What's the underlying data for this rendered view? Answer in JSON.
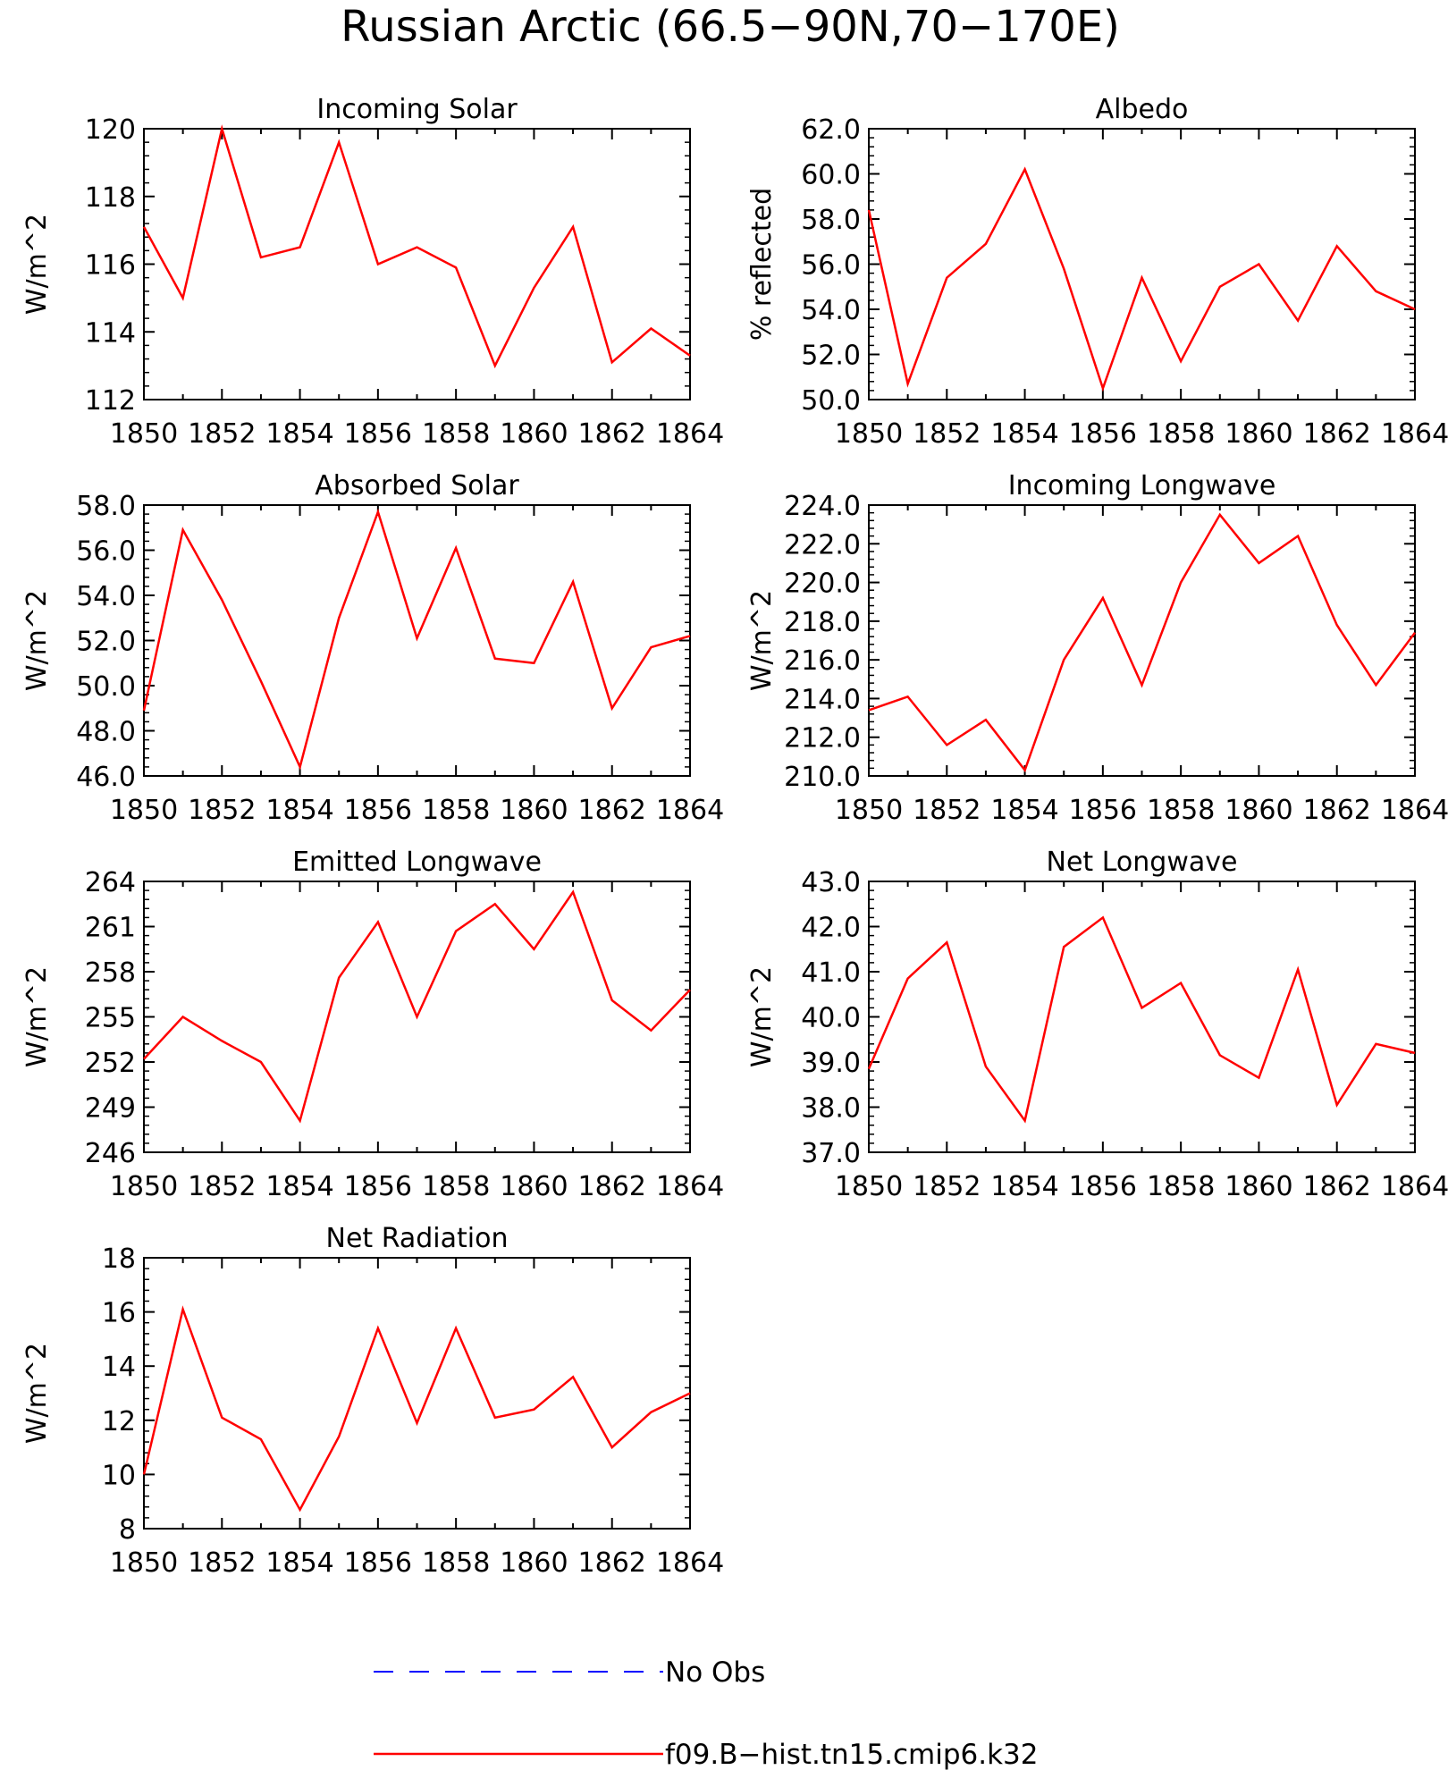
{
  "title": "Russian Arctic (66.5−90N,70−170E)",
  "legend": {
    "placement": "bottom-center",
    "entries": [
      {
        "label": "No Obs",
        "color": "#0000ff",
        "dash": "dashed"
      },
      {
        "label": "f09.B−hist.tn15.cmip6.k32",
        "color": "#ff0000",
        "dash": "solid"
      }
    ]
  },
  "chart_data": [
    {
      "type": "line",
      "title": "Incoming Solar",
      "xlabel": "",
      "ylabel": "W/m^2",
      "xlim": [
        1850,
        1864
      ],
      "ylim": [
        112,
        120
      ],
      "xticks": [
        "1850",
        "1852",
        "1854",
        "1856",
        "1858",
        "1860",
        "1862",
        "1864"
      ],
      "yticks": [
        "112",
        "114",
        "116",
        "118",
        "120"
      ],
      "series": [
        {
          "name": "f09.B−hist.tn15.cmip6.k32",
          "color": "#ff0000",
          "x": [
            1850,
            1851,
            1852,
            1853,
            1854,
            1855,
            1856,
            1857,
            1858,
            1859,
            1860,
            1861,
            1862,
            1863,
            1864
          ],
          "y": [
            117.1,
            115.0,
            120.0,
            116.2,
            116.5,
            119.6,
            116.0,
            116.5,
            115.9,
            113.0,
            115.3,
            117.1,
            113.1,
            114.1,
            113.3
          ]
        }
      ]
    },
    {
      "type": "line",
      "title": "Albedo",
      "xlabel": "",
      "ylabel": "% reflected",
      "xlim": [
        1850,
        1864
      ],
      "ylim": [
        50.0,
        62.0
      ],
      "xticks": [
        "1850",
        "1852",
        "1854",
        "1856",
        "1858",
        "1860",
        "1862",
        "1864"
      ],
      "yticks": [
        "50.0",
        "52.0",
        "54.0",
        "56.0",
        "58.0",
        "60.0",
        "62.0"
      ],
      "series": [
        {
          "name": "f09.B−hist.tn15.cmip6.k32",
          "color": "#ff0000",
          "x": [
            1850,
            1851,
            1852,
            1853,
            1854,
            1855,
            1856,
            1857,
            1858,
            1859,
            1860,
            1861,
            1862,
            1863,
            1864
          ],
          "y": [
            58.4,
            50.7,
            55.4,
            56.9,
            60.2,
            55.8,
            50.5,
            55.4,
            51.7,
            55.0,
            56.0,
            53.5,
            56.8,
            54.8,
            54.0
          ]
        }
      ]
    },
    {
      "type": "line",
      "title": "Absorbed Solar",
      "xlabel": "",
      "ylabel": "W/m^2",
      "xlim": [
        1850,
        1864
      ],
      "ylim": [
        46.0,
        58.0
      ],
      "xticks": [
        "1850",
        "1852",
        "1854",
        "1856",
        "1858",
        "1860",
        "1862",
        "1864"
      ],
      "yticks": [
        "46.0",
        "48.0",
        "50.0",
        "52.0",
        "54.0",
        "56.0",
        "58.0"
      ],
      "series": [
        {
          "name": "f09.B−hist.tn15.cmip6.k32",
          "color": "#ff0000",
          "x": [
            1850,
            1851,
            1852,
            1853,
            1854,
            1855,
            1856,
            1857,
            1858,
            1859,
            1860,
            1861,
            1862,
            1863,
            1864
          ],
          "y": [
            48.9,
            56.9,
            53.8,
            50.2,
            46.4,
            53.0,
            57.7,
            52.1,
            56.1,
            51.2,
            51.0,
            54.6,
            49.0,
            51.7,
            52.2
          ]
        }
      ]
    },
    {
      "type": "line",
      "title": "Incoming Longwave",
      "xlabel": "",
      "ylabel": "W/m^2",
      "xlim": [
        1850,
        1864
      ],
      "ylim": [
        210.0,
        224.0
      ],
      "xticks": [
        "1850",
        "1852",
        "1854",
        "1856",
        "1858",
        "1860",
        "1862",
        "1864"
      ],
      "yticks": [
        "210.0",
        "212.0",
        "214.0",
        "216.0",
        "218.0",
        "220.0",
        "222.0",
        "224.0"
      ],
      "series": [
        {
          "name": "f09.B−hist.tn15.cmip6.k32",
          "color": "#ff0000",
          "x": [
            1850,
            1851,
            1852,
            1853,
            1854,
            1855,
            1856,
            1857,
            1858,
            1859,
            1860,
            1861,
            1862,
            1863,
            1864
          ],
          "y": [
            213.4,
            214.1,
            211.6,
            212.9,
            210.3,
            216.0,
            219.2,
            214.7,
            220.0,
            223.5,
            221.0,
            222.4,
            217.8,
            214.7,
            217.4
          ]
        }
      ]
    },
    {
      "type": "line",
      "title": "Emitted Longwave",
      "xlabel": "",
      "ylabel": "W/m^2",
      "xlim": [
        1850,
        1864
      ],
      "ylim": [
        246,
        264
      ],
      "xticks": [
        "1850",
        "1852",
        "1854",
        "1856",
        "1858",
        "1860",
        "1862",
        "1864"
      ],
      "yticks": [
        "246",
        "249",
        "252",
        "255",
        "258",
        "261",
        "264"
      ],
      "series": [
        {
          "name": "f09.B−hist.tn15.cmip6.k32",
          "color": "#ff0000",
          "x": [
            1850,
            1851,
            1852,
            1853,
            1854,
            1855,
            1856,
            1857,
            1858,
            1859,
            1860,
            1861,
            1862,
            1863,
            1864
          ],
          "y": [
            252.2,
            255.0,
            253.4,
            252.0,
            248.1,
            257.6,
            261.3,
            255.0,
            260.7,
            262.5,
            259.5,
            263.3,
            256.1,
            254.1,
            256.8
          ]
        }
      ]
    },
    {
      "type": "line",
      "title": "Net Longwave",
      "xlabel": "",
      "ylabel": "W/m^2",
      "xlim": [
        1850,
        1864
      ],
      "ylim": [
        37.0,
        43.0
      ],
      "xticks": [
        "1850",
        "1852",
        "1854",
        "1856",
        "1858",
        "1860",
        "1862",
        "1864"
      ],
      "yticks": [
        "37.0",
        "38.0",
        "39.0",
        "40.0",
        "41.0",
        "42.0",
        "43.0"
      ],
      "series": [
        {
          "name": "f09.B−hist.tn15.cmip6.k32",
          "color": "#ff0000",
          "x": [
            1850,
            1851,
            1852,
            1853,
            1854,
            1855,
            1856,
            1857,
            1858,
            1859,
            1860,
            1861,
            1862,
            1863,
            1864
          ],
          "y": [
            38.85,
            40.85,
            41.65,
            38.9,
            37.7,
            41.55,
            42.2,
            40.2,
            40.75,
            39.15,
            38.65,
            41.05,
            38.05,
            39.4,
            39.2
          ]
        }
      ]
    },
    {
      "type": "line",
      "title": "Net Radiation",
      "xlabel": "",
      "ylabel": "W/m^2",
      "xlim": [
        1850,
        1864
      ],
      "ylim": [
        8,
        18
      ],
      "xticks": [
        "1850",
        "1852",
        "1854",
        "1856",
        "1858",
        "1860",
        "1862",
        "1864"
      ],
      "yticks": [
        "8",
        "10",
        "12",
        "14",
        "16",
        "18"
      ],
      "series": [
        {
          "name": "f09.B−hist.tn15.cmip6.k32",
          "color": "#ff0000",
          "x": [
            1850,
            1851,
            1852,
            1853,
            1854,
            1855,
            1856,
            1857,
            1858,
            1859,
            1860,
            1861,
            1862,
            1863,
            1864
          ],
          "y": [
            10.0,
            16.1,
            12.1,
            11.3,
            8.7,
            11.4,
            15.4,
            11.9,
            15.4,
            12.1,
            12.4,
            13.6,
            11.0,
            12.3,
            13.0
          ]
        }
      ]
    }
  ]
}
